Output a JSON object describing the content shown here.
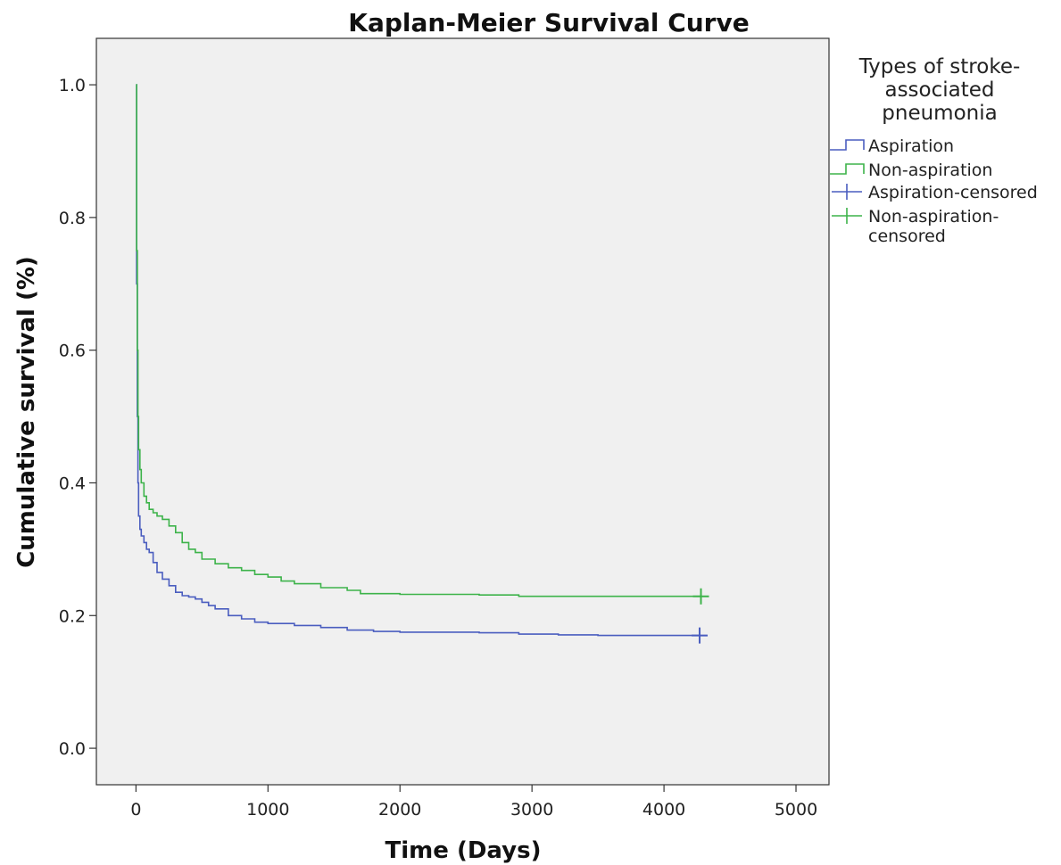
{
  "chart_data": {
    "type": "line",
    "title": "Kaplan-Meier Survival Curve",
    "xlabel": "Time (Days)",
    "ylabel": "Cumulative survival (%)",
    "xlim": [
      -300,
      5250
    ],
    "ylim": [
      -0.055,
      1.07
    ],
    "xticks": [
      0,
      1000,
      2000,
      3000,
      4000,
      5000
    ],
    "yticks": [
      0.0,
      0.2,
      0.4,
      0.6,
      0.8,
      1.0
    ],
    "xtick_labels": [
      "0",
      "1000",
      "2000",
      "3000",
      "4000",
      "5000"
    ],
    "ytick_labels": [
      "0.0",
      "0.2",
      "0.4",
      "0.6",
      "0.8",
      "1.0"
    ],
    "grid": false,
    "legend": {
      "placement": "right",
      "title_lines": [
        "Types of stroke-",
        "associated",
        "pneumonia"
      ],
      "entries": [
        {
          "label_lines": [
            "Aspiration"
          ],
          "kind": "step",
          "color": "#4a5dbf"
        },
        {
          "label_lines": [
            "Non-aspiration"
          ],
          "kind": "step",
          "color": "#3db34a"
        },
        {
          "label_lines": [
            "Aspiration-censored"
          ],
          "kind": "cross",
          "color": "#4a5dbf"
        },
        {
          "label_lines": [
            "Non-aspiration-",
            "censored"
          ],
          "kind": "cross",
          "color": "#3db34a"
        }
      ]
    },
    "series": [
      {
        "name": "Aspiration",
        "color": "#4a5dbf",
        "step": true,
        "x": [
          0,
          5,
          10,
          15,
          20,
          30,
          40,
          60,
          80,
          100,
          130,
          160,
          200,
          250,
          300,
          350,
          400,
          450,
          500,
          550,
          600,
          700,
          800,
          900,
          1000,
          1200,
          1400,
          1600,
          1800,
          2000,
          2300,
          2600,
          2900,
          3200,
          3500,
          3800,
          4100,
          4270
        ],
        "y": [
          1.0,
          0.7,
          0.5,
          0.4,
          0.35,
          0.33,
          0.32,
          0.31,
          0.3,
          0.295,
          0.28,
          0.265,
          0.255,
          0.245,
          0.235,
          0.23,
          0.228,
          0.225,
          0.22,
          0.215,
          0.21,
          0.2,
          0.195,
          0.19,
          0.188,
          0.185,
          0.182,
          0.178,
          0.176,
          0.175,
          0.175,
          0.174,
          0.172,
          0.171,
          0.17,
          0.17,
          0.17,
          0.17
        ]
      },
      {
        "name": "Non-aspiration",
        "color": "#3db34a",
        "step": true,
        "x": [
          0,
          5,
          10,
          15,
          20,
          30,
          40,
          60,
          80,
          100,
          130,
          160,
          200,
          250,
          300,
          350,
          400,
          450,
          500,
          600,
          700,
          800,
          900,
          1000,
          1100,
          1200,
          1400,
          1600,
          1700,
          2000,
          2300,
          2600,
          2900,
          3200,
          3500,
          3800,
          4100,
          4280
        ],
        "y": [
          1.0,
          0.75,
          0.6,
          0.5,
          0.45,
          0.42,
          0.4,
          0.38,
          0.37,
          0.36,
          0.355,
          0.35,
          0.345,
          0.335,
          0.325,
          0.31,
          0.3,
          0.295,
          0.285,
          0.278,
          0.272,
          0.268,
          0.262,
          0.258,
          0.252,
          0.248,
          0.242,
          0.238,
          0.233,
          0.232,
          0.232,
          0.231,
          0.229,
          0.229,
          0.229,
          0.229,
          0.229,
          0.229
        ]
      }
    ],
    "censored": [
      {
        "name": "Aspiration-censored",
        "color": "#4a5dbf",
        "x": [
          4270
        ],
        "y": [
          0.17
        ]
      },
      {
        "name": "Non-aspiration-censored",
        "color": "#3db34a",
        "x": [
          4280
        ],
        "y": [
          0.229
        ]
      }
    ]
  }
}
